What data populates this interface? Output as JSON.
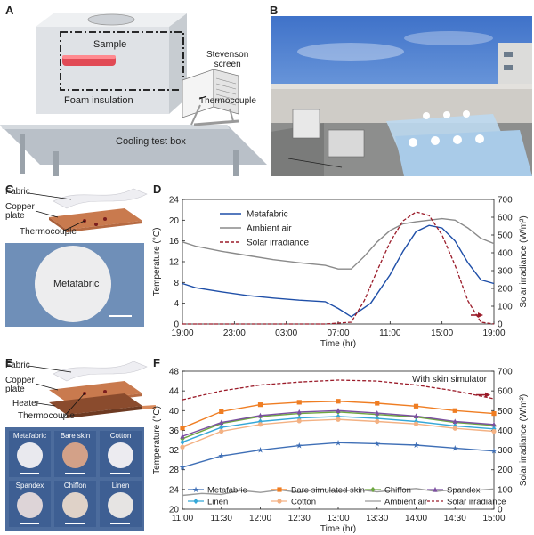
{
  "panels": {
    "a": {
      "letter": "A",
      "labels": {
        "sample": "Sample",
        "foam": "Foam insulation",
        "stevenson": "Stevenson\nscreen",
        "thermocouple": "Thermocouple",
        "box": "Cooling test box"
      }
    },
    "b": {
      "letter": "B"
    },
    "c": {
      "letter": "C",
      "labels": {
        "fabric": "Fabric",
        "copper": "Copper\nplate",
        "thermocouple": "Thermocouple",
        "sample": "Metafabric"
      }
    },
    "d": {
      "letter": "D"
    },
    "e": {
      "letter": "E",
      "labels": {
        "fabric": "Fabric",
        "copper": "Copper\nplate",
        "heater": "Heater",
        "thermocouple": "Thermocouple"
      },
      "swatches": [
        {
          "label": "Metafabric",
          "color": "#e9e9ee"
        },
        {
          "label": "Bare skin",
          "color": "#d3a188"
        },
        {
          "label": "Cotton",
          "color": "#ecebf0"
        },
        {
          "label": "Spandex",
          "color": "#ddd4d7"
        },
        {
          "label": "Chiffon",
          "color": "#dfd2c8"
        },
        {
          "label": "Linen",
          "color": "#e6e4e3"
        }
      ]
    },
    "f": {
      "letter": "F"
    }
  },
  "chart_data": [
    {
      "panel": "D",
      "type": "line",
      "xlabel": "Time (hr)",
      "ylabel": "Temperature (°C)",
      "y2label": "Solar irradiance (W/m²)",
      "x_ticks": [
        "19:00",
        "23:00",
        "03:00",
        "07:00",
        "11:00",
        "15:00",
        "19:00"
      ],
      "xlim": [
        19,
        43
      ],
      "ylim": [
        0,
        24
      ],
      "y_ticks": [
        0,
        4,
        8,
        12,
        16,
        20,
        24
      ],
      "y2lim": [
        0,
        700
      ],
      "y2_ticks": [
        0,
        100,
        200,
        300,
        400,
        500,
        600,
        700
      ],
      "legend_position": "top-left",
      "series": [
        {
          "name": "Metafabric",
          "axis": "left",
          "color": "#1f4fa8",
          "style": "solid",
          "x": [
            19,
            20,
            22,
            24,
            26,
            28,
            30,
            31,
            32,
            33.5,
            35,
            36,
            37,
            38,
            39,
            40,
            41,
            42,
            43
          ],
          "y": [
            7.8,
            7.0,
            6.2,
            5.5,
            5.0,
            4.6,
            4.3,
            3.0,
            1.4,
            4.0,
            9.5,
            14.0,
            17.8,
            19.0,
            18.5,
            16.0,
            11.8,
            8.5,
            7.8
          ]
        },
        {
          "name": "Ambient air",
          "axis": "left",
          "color": "#8a8a8a",
          "style": "solid",
          "x": [
            19,
            20,
            22,
            24,
            26,
            28,
            30,
            31,
            32,
            33,
            34,
            35,
            36,
            37,
            38,
            39,
            40,
            41,
            42,
            43
          ],
          "y": [
            15.8,
            15.0,
            14.0,
            13.2,
            12.4,
            11.8,
            11.3,
            10.6,
            10.6,
            13.0,
            15.8,
            18.0,
            19.3,
            19.7,
            20.0,
            20.3,
            20.0,
            18.5,
            16.5,
            15.5
          ]
        },
        {
          "name": "Solar irradiance",
          "axis": "right",
          "color": "#9b1c2a",
          "style": "dashed",
          "x": [
            19,
            30,
            32,
            33,
            34,
            35,
            36,
            37,
            38,
            39,
            40,
            41,
            42,
            43
          ],
          "y": [
            0,
            0,
            10,
            130,
            300,
            460,
            580,
            630,
            610,
            500,
            330,
            130,
            10,
            0
          ]
        }
      ]
    },
    {
      "panel": "F",
      "type": "line",
      "annotation": "With skin simulator",
      "xlabel": "Time (hr)",
      "ylabel": "Temperature (°C)",
      "y2label": "Solar irradiance (W/m²)",
      "x_ticks": [
        "11:00",
        "11:30",
        "12:00",
        "12:30",
        "13:00",
        "13:30",
        "14:00",
        "14:30",
        "15:00"
      ],
      "xlim": [
        11,
        15
      ],
      "ylim": [
        20,
        48
      ],
      "y_ticks": [
        20,
        24,
        28,
        32,
        36,
        40,
        44,
        48
      ],
      "y2lim": [
        0,
        700
      ],
      "y2_ticks": [
        0,
        100,
        200,
        300,
        400,
        500,
        600,
        700
      ],
      "legend_position": "bottom",
      "series": [
        {
          "name": "Metafabric",
          "axis": "left",
          "color": "#3f6fb6",
          "marker": "star",
          "x": [
            11,
            11.5,
            12,
            12.5,
            13,
            13.5,
            14,
            14.5,
            15
          ],
          "y": [
            28.5,
            30.8,
            32.0,
            32.9,
            33.5,
            33.3,
            33.0,
            32.4,
            31.8
          ]
        },
        {
          "name": "Bare simulated skin",
          "axis": "left",
          "color": "#ef7d22",
          "marker": "square",
          "x": [
            11,
            11.5,
            12,
            12.5,
            13,
            13.5,
            14,
            14.5,
            15
          ],
          "y": [
            36.5,
            39.8,
            41.2,
            41.7,
            41.9,
            41.5,
            40.9,
            40.0,
            39.4
          ]
        },
        {
          "name": "Chiffon",
          "axis": "left",
          "color": "#6ea741",
          "marker": "diamond",
          "x": [
            11,
            11.5,
            12,
            12.5,
            13,
            13.5,
            14,
            14.5,
            15
          ],
          "y": [
            34.3,
            37.4,
            38.8,
            39.4,
            39.7,
            39.2,
            38.7,
            37.6,
            37.0
          ]
        },
        {
          "name": "Spandex",
          "axis": "left",
          "color": "#7b4fa0",
          "marker": "triangle",
          "x": [
            11,
            11.5,
            12,
            12.5,
            13,
            13.5,
            14,
            14.5,
            15
          ],
          "y": [
            34.8,
            37.6,
            39.0,
            39.7,
            40.0,
            39.5,
            38.9,
            37.8,
            37.2
          ]
        },
        {
          "name": "Linen",
          "axis": "left",
          "color": "#35a8d8",
          "marker": "diamond",
          "x": [
            11,
            11.5,
            12,
            12.5,
            13,
            13.5,
            14,
            14.5,
            15
          ],
          "y": [
            33.6,
            36.6,
            37.8,
            38.5,
            38.8,
            38.4,
            37.8,
            36.9,
            36.3
          ]
        },
        {
          "name": "Cotton",
          "axis": "left",
          "color": "#f3b183",
          "marker": "circle",
          "x": [
            11,
            11.5,
            12,
            12.5,
            13,
            13.5,
            14,
            14.5,
            15
          ],
          "y": [
            32.6,
            35.8,
            37.2,
            37.9,
            38.2,
            37.8,
            37.3,
            36.4,
            35.8
          ]
        },
        {
          "name": "Ambient air",
          "axis": "left",
          "color": "#9a9a9a",
          "marker": "none",
          "x": [
            11,
            11.25,
            11.5,
            11.75,
            12,
            12.25,
            12.5,
            12.75,
            13,
            13.25,
            13.5,
            13.75,
            14,
            14.25,
            14.5,
            14.75,
            15
          ],
          "y": [
            22.8,
            23.2,
            23.0,
            23.8,
            23.4,
            23.9,
            23.4,
            24.1,
            23.6,
            24.0,
            23.5,
            23.9,
            24.2,
            23.6,
            24.0,
            23.8,
            24.1
          ]
        },
        {
          "name": "Solar irradiance",
          "axis": "right",
          "color": "#9b1c2a",
          "marker": "none",
          "style": "dashed",
          "x": [
            11,
            11.5,
            12,
            12.5,
            13,
            13.5,
            14,
            14.5,
            15
          ],
          "y": [
            555,
            600,
            630,
            645,
            655,
            650,
            630,
            600,
            560
          ]
        }
      ]
    }
  ]
}
